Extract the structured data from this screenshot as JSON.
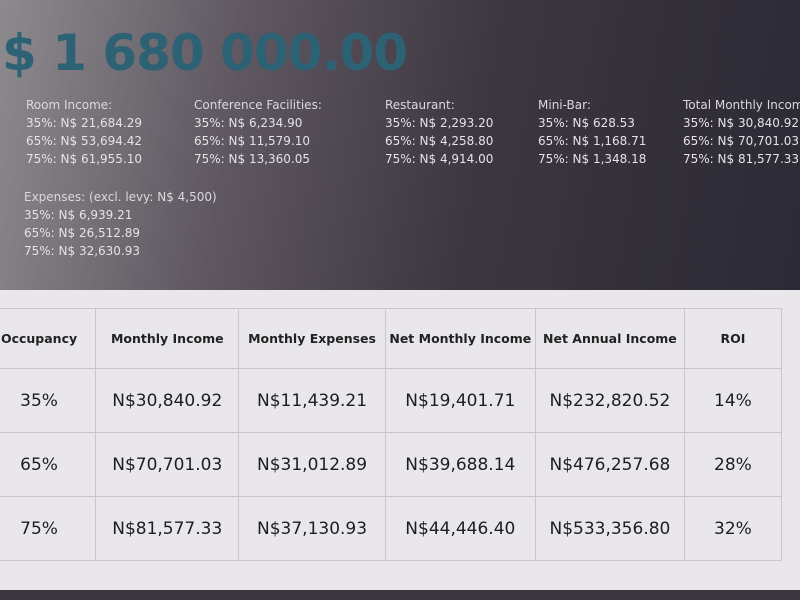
{
  "title": "$ 1 680 000.00",
  "blocks": [
    {
      "heading": "Room Income:",
      "lines": [
        "35%: N$ 21,684.29",
        "65%: N$ 53,694.42",
        "75%: N$ 61,955.10"
      ]
    },
    {
      "heading": "Conference Facilities:",
      "lines": [
        "35%: N$ 6,234.90",
        "65%: N$ 11,579.10",
        "75%: N$ 13,360.05"
      ]
    },
    {
      "heading": "Restaurant:",
      "lines": [
        "35%: N$ 2,293.20",
        "65%: N$ 4,258.80",
        "75%: N$ 4,914.00"
      ]
    },
    {
      "heading": "Mini-Bar:",
      "lines": [
        "35%: N$ 628.53",
        "65%: N$ 1,168.71",
        "75%: N$ 1,348.18"
      ]
    },
    {
      "heading": "Total Monthly Income:",
      "lines": [
        "35%: N$ 30,840.92",
        "65%: N$ 70,701.03",
        "75%: N$ 81,577.33"
      ]
    },
    {
      "heading": "Expenses: (excl. levy: N$ 4,500)",
      "lines": [
        "35%: N$ 6,939.21",
        "65%: N$ 26,512.89",
        "75%: N$ 32,630.93"
      ]
    }
  ],
  "table": {
    "headers": [
      "Occupancy",
      "Monthly Income",
      "Monthly Expenses",
      "Net Monthly Income",
      "Net Annual Income",
      "ROI"
    ],
    "rows": [
      [
        "35%",
        "N$30,840.92",
        "N$11,439.21",
        "N$19,401.71",
        "N$232,820.52",
        "14%"
      ],
      [
        "65%",
        "N$70,701.03",
        "N$31,012.89",
        "N$39,688.14",
        "N$476,257.68",
        "28%"
      ],
      [
        "75%",
        "N$81,577.33",
        "N$37,130.93",
        "N$44,446.40",
        "N$533,356.80",
        "32%"
      ]
    ]
  }
}
